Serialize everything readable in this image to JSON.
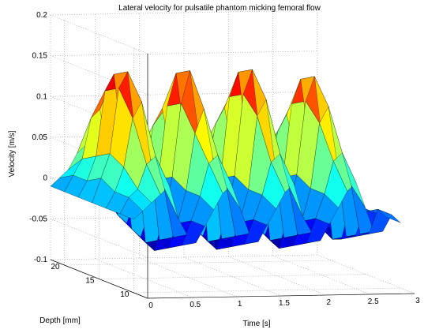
{
  "chart_data": {
    "type": "surface",
    "title": "Lateral velocity for pulsatile phantom micking femoral flow",
    "xlabel": "Time [s]",
    "ylabel": "Depth [mm]",
    "zlabel": "Velocity [m/s]",
    "xlim": [
      0,
      3
    ],
    "ylim": [
      8,
      22
    ],
    "zlim": [
      -0.1,
      0.2
    ],
    "x_ticks": [
      "0",
      "0.5",
      "1",
      "1.5",
      "2",
      "2.5",
      "3"
    ],
    "y_ticks": [
      "20",
      "15",
      "10"
    ],
    "z_ticks": [
      "-0.1",
      "-0.05",
      "0",
      "0.05",
      "0.1",
      "0.15",
      "0.2"
    ],
    "grid": true,
    "colormap": "jet",
    "time_s": [
      0,
      0.1,
      0.2,
      0.3,
      0.4,
      0.5,
      0.6,
      0.7,
      0.8,
      0.9,
      1.0,
      1.1,
      1.2,
      1.3,
      1.4,
      1.5,
      1.6,
      1.7,
      1.8,
      1.9,
      2.0,
      2.1,
      2.2,
      2.3,
      2.4,
      2.5,
      2.6,
      2.7,
      2.8,
      2.9,
      3.0
    ],
    "depth_mm": [
      10,
      12,
      14,
      16,
      18,
      20,
      22
    ],
    "velocity_m_s": [
      [
        -0.01,
        0.0,
        0.01,
        0.02,
        0.03,
        -0.01,
        -0.03,
        -0.04,
        -0.02,
        0.0,
        0.02,
        0.03,
        0.0,
        -0.03,
        -0.04,
        -0.02,
        0.0,
        0.02,
        0.03,
        -0.01,
        -0.03,
        -0.04,
        -0.02,
        0.0,
        0.02,
        0.03,
        0.0,
        -0.03,
        -0.03,
        -0.01,
        -0.02
      ],
      [
        -0.01,
        0.01,
        0.02,
        0.05,
        0.06,
        0.02,
        -0.04,
        -0.05,
        -0.02,
        0.01,
        0.05,
        0.06,
        0.02,
        -0.04,
        -0.05,
        -0.02,
        0.01,
        0.05,
        0.06,
        0.02,
        -0.04,
        -0.05,
        -0.02,
        0.01,
        0.05,
        0.06,
        0.02,
        -0.04,
        -0.04,
        -0.01,
        -0.02
      ],
      [
        -0.01,
        0.01,
        0.04,
        0.1,
        0.12,
        0.05,
        -0.05,
        -0.06,
        -0.03,
        0.01,
        0.08,
        0.11,
        0.05,
        -0.05,
        -0.06,
        -0.03,
        0.01,
        0.1,
        0.12,
        0.04,
        -0.05,
        -0.06,
        -0.03,
        0.01,
        0.09,
        0.11,
        0.04,
        -0.05,
        -0.05,
        -0.02,
        -0.02
      ],
      [
        -0.01,
        0.02,
        0.05,
        0.13,
        0.15,
        0.06,
        -0.06,
        -0.07,
        -0.03,
        0.02,
        0.11,
        0.15,
        0.07,
        -0.06,
        -0.07,
        -0.03,
        0.02,
        0.12,
        0.15,
        0.05,
        -0.06,
        -0.07,
        -0.03,
        0.02,
        0.11,
        0.14,
        0.05,
        -0.06,
        -0.06,
        -0.02,
        -0.02
      ],
      [
        -0.01,
        0.01,
        0.04,
        0.12,
        0.14,
        0.05,
        -0.05,
        -0.06,
        -0.03,
        0.01,
        0.1,
        0.14,
        0.06,
        -0.05,
        -0.06,
        -0.03,
        0.01,
        0.11,
        0.14,
        0.05,
        -0.05,
        -0.06,
        -0.03,
        0.01,
        0.1,
        0.13,
        0.05,
        -0.05,
        -0.05,
        -0.02,
        -0.02
      ],
      [
        -0.01,
        0.01,
        0.03,
        0.08,
        0.09,
        0.03,
        -0.04,
        -0.05,
        -0.02,
        0.01,
        0.07,
        0.09,
        0.03,
        -0.04,
        -0.05,
        -0.02,
        0.01,
        0.07,
        0.09,
        0.03,
        -0.04,
        -0.05,
        -0.02,
        0.01,
        0.06,
        0.08,
        0.03,
        -0.04,
        -0.04,
        -0.01,
        -0.02
      ],
      [
        -0.01,
        0.0,
        0.01,
        0.03,
        0.04,
        0.01,
        -0.02,
        -0.03,
        -0.01,
        0.0,
        0.03,
        0.04,
        0.01,
        -0.02,
        -0.03,
        -0.01,
        0.0,
        0.03,
        0.04,
        0.01,
        -0.02,
        -0.03,
        -0.01,
        0.0,
        0.03,
        0.04,
        0.01,
        -0.02,
        -0.02,
        -0.01,
        -0.02
      ]
    ]
  }
}
